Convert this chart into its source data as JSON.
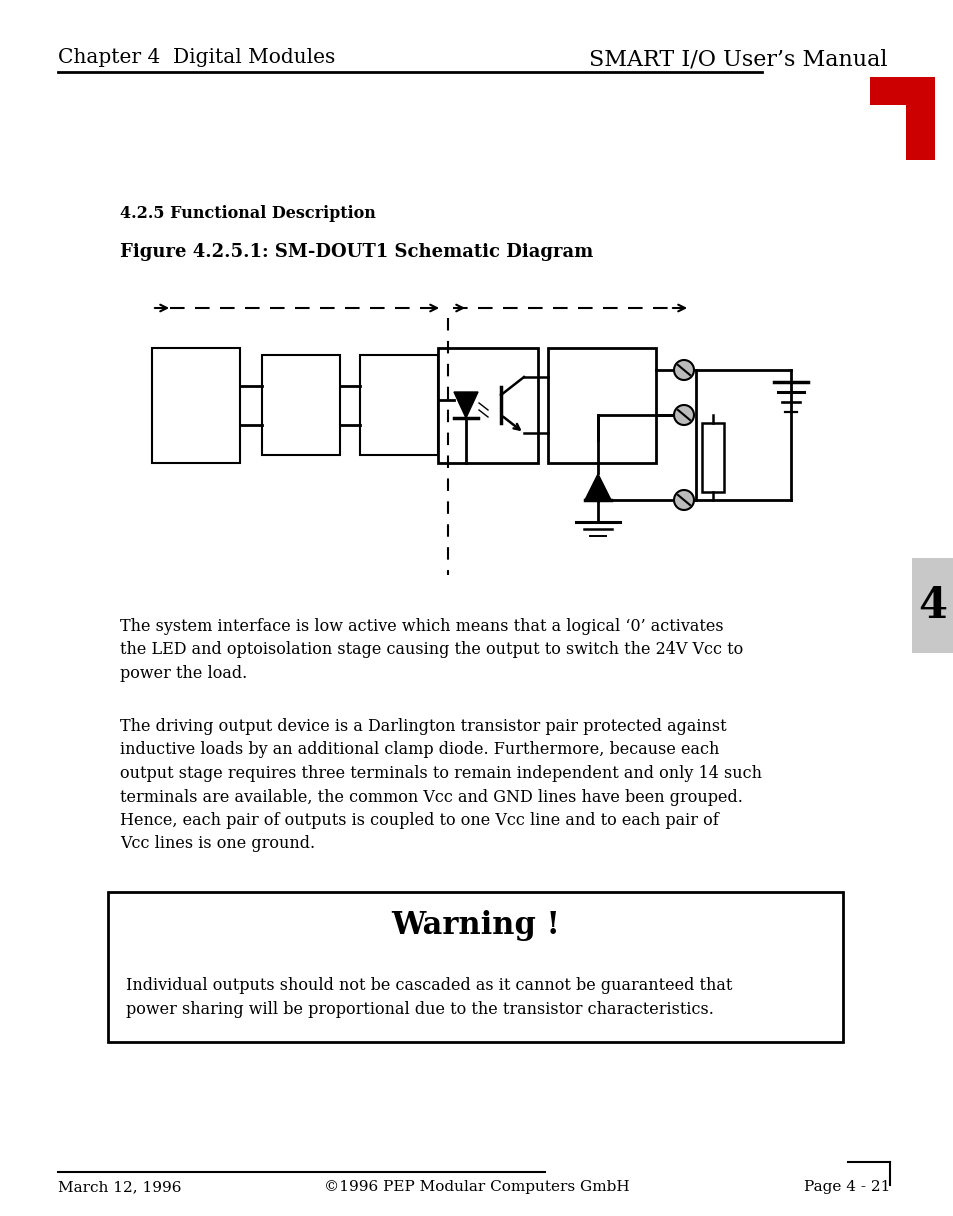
{
  "header_left": "Chapter 4  Digital Modules",
  "header_right": "SMART I/O User’s Manual",
  "section_title": "4.2.5 Functional Description",
  "figure_title": "Figure 4.2.5.1: SM-DOUT1 Schematic Diagram",
  "para1": "The system interface is low active which means that a logical ‘0’ activates\nthe LED and optoisolation stage causing the output to switch the 24V Vcc to\npower the load.",
  "para2": "The driving output device is a Darlington transistor pair protected against\ninductive loads by an additional clamp diode. Furthermore, because each\noutput stage requires three terminals to remain independent and only 14 such\nterminals are available, the common Vcc and GND lines have been grouped.\nHence, each pair of outputs is coupled to one Vcc line and to each pair of\nVcc lines is one ground.",
  "warning_title": "Warning !",
  "warning_text": "Individual outputs should not be cascaded as it cannot be guaranteed that\npower sharing will be proportional due to the transistor characteristics.",
  "footer_left": "March 12, 1996",
  "footer_center": "©1996 PEP Modular Computers GmbH",
  "footer_right": "Page 4 - 21",
  "red_color": "#cc0000",
  "tab_color": "#c8c8c8",
  "bg_color": "#ffffff"
}
